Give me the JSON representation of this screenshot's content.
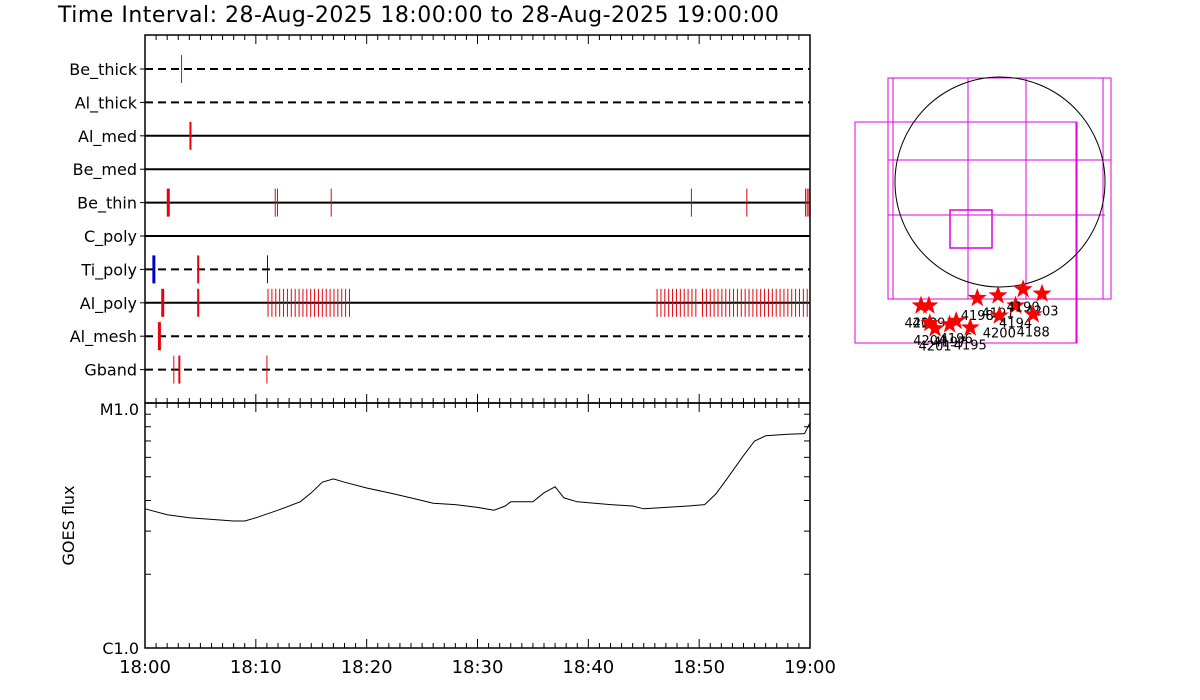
{
  "title": "Time Interval: 28-Aug-2025 18:00:00 to 28-Aug-2025 19:00:00",
  "colors": {
    "event": "#e8000b",
    "event_blue": "#0000cc",
    "region": "#e000e0",
    "star": "#ff0000",
    "line": "#000000"
  },
  "chart_data": [
    {
      "type": "event-timeline",
      "x_range": [
        "18:00",
        "19:00"
      ],
      "rows": [
        {
          "name": "Be_thick",
          "style": "dashed",
          "events": [
            {
              "t": 3.3,
              "color": "red",
              "w": 1
            }
          ]
        },
        {
          "name": "Al_thick",
          "style": "dashed",
          "events": []
        },
        {
          "name": "Al_med",
          "style": "solid",
          "events": [
            {
              "t": 4.1,
              "color": "red",
              "w": 2
            }
          ]
        },
        {
          "name": "Be_med",
          "style": "solid",
          "events": []
        },
        {
          "name": "Be_thin",
          "style": "solid",
          "events": [
            {
              "t": 2.1,
              "color": "red",
              "w": 3
            },
            {
              "t": 11.75,
              "color": "red",
              "w": 1
            },
            {
              "t": 11.95,
              "color": "red",
              "w": 1
            },
            {
              "t": 16.8,
              "color": "red",
              "w": 1
            },
            {
              "t": 49.3,
              "color": "red",
              "w": 1
            },
            {
              "t": 54.3,
              "color": "red",
              "w": 1
            },
            {
              "t": 59.6,
              "color": "red",
              "w": 1
            },
            {
              "t": 59.75,
              "color": "red",
              "w": 1
            },
            {
              "t": 59.9,
              "color": "red",
              "w": 1
            }
          ]
        },
        {
          "name": "C_poly",
          "style": "solid",
          "events": []
        },
        {
          "name": "Ti_poly",
          "style": "dashed",
          "events": [
            {
              "t": 0.8,
              "color": "blue",
              "w": 3
            },
            {
              "t": 4.8,
              "color": "red",
              "w": 2
            },
            {
              "t": 11.05,
              "color": "blue",
              "w": 1
            }
          ]
        },
        {
          "name": "Al_poly",
          "style": "solid",
          "events": [
            {
              "t": 1.6,
              "color": "red",
              "w": 3
            },
            {
              "t": 4.8,
              "color": "red",
              "w": 2
            },
            {
              "t": 11.1,
              "color": "red",
              "w": 1
            },
            {
              "t": 11.45,
              "color": "red",
              "w": 1
            },
            {
              "t": 11.8,
              "color": "red",
              "w": 1
            },
            {
              "t": 12.15,
              "color": "red",
              "w": 1
            },
            {
              "t": 12.5,
              "color": "red",
              "w": 1
            },
            {
              "t": 12.85,
              "color": "red",
              "w": 1
            },
            {
              "t": 13.2,
              "color": "red",
              "w": 1
            },
            {
              "t": 13.55,
              "color": "red",
              "w": 1
            },
            {
              "t": 13.9,
              "color": "red",
              "w": 1
            },
            {
              "t": 14.25,
              "color": "red",
              "w": 1
            },
            {
              "t": 14.6,
              "color": "red",
              "w": 1
            },
            {
              "t": 14.95,
              "color": "red",
              "w": 1
            },
            {
              "t": 15.3,
              "color": "red",
              "w": 1
            },
            {
              "t": 15.65,
              "color": "red",
              "w": 1
            },
            {
              "t": 16.0,
              "color": "red",
              "w": 1
            },
            {
              "t": 16.35,
              "color": "red",
              "w": 1
            },
            {
              "t": 16.7,
              "color": "red",
              "w": 1
            },
            {
              "t": 17.05,
              "color": "red",
              "w": 1
            },
            {
              "t": 17.4,
              "color": "red",
              "w": 1
            },
            {
              "t": 17.75,
              "color": "red",
              "w": 1
            },
            {
              "t": 18.1,
              "color": "red",
              "w": 1
            },
            {
              "t": 18.45,
              "color": "red",
              "w": 1
            },
            {
              "t": 46.2,
              "color": "red",
              "w": 1
            },
            {
              "t": 46.55,
              "color": "red",
              "w": 1
            },
            {
              "t": 46.9,
              "color": "red",
              "w": 1
            },
            {
              "t": 47.25,
              "color": "red",
              "w": 1
            },
            {
              "t": 47.6,
              "color": "red",
              "w": 1
            },
            {
              "t": 47.95,
              "color": "red",
              "w": 1
            },
            {
              "t": 48.3,
              "color": "red",
              "w": 1
            },
            {
              "t": 48.65,
              "color": "red",
              "w": 1
            },
            {
              "t": 49.0,
              "color": "red",
              "w": 1
            },
            {
              "t": 49.35,
              "color": "red",
              "w": 1
            },
            {
              "t": 49.7,
              "color": "red",
              "w": 1
            },
            {
              "t": 50.3,
              "color": "red",
              "w": 1
            },
            {
              "t": 50.65,
              "color": "red",
              "w": 1
            },
            {
              "t": 51.0,
              "color": "red",
              "w": 1
            },
            {
              "t": 51.35,
              "color": "red",
              "w": 1
            },
            {
              "t": 51.7,
              "color": "red",
              "w": 1
            },
            {
              "t": 52.05,
              "color": "red",
              "w": 1
            },
            {
              "t": 52.4,
              "color": "red",
              "w": 1
            },
            {
              "t": 52.75,
              "color": "red",
              "w": 1
            },
            {
              "t": 53.1,
              "color": "red",
              "w": 1
            },
            {
              "t": 53.45,
              "color": "red",
              "w": 1
            },
            {
              "t": 53.8,
              "color": "red",
              "w": 1
            },
            {
              "t": 54.15,
              "color": "red",
              "w": 1
            },
            {
              "t": 54.5,
              "color": "red",
              "w": 1
            },
            {
              "t": 54.85,
              "color": "red",
              "w": 1
            },
            {
              "t": 55.2,
              "color": "red",
              "w": 1
            },
            {
              "t": 55.55,
              "color": "red",
              "w": 1
            },
            {
              "t": 55.9,
              "color": "red",
              "w": 1
            },
            {
              "t": 56.25,
              "color": "red",
              "w": 1
            },
            {
              "t": 56.6,
              "color": "red",
              "w": 1
            },
            {
              "t": 56.95,
              "color": "red",
              "w": 1
            },
            {
              "t": 57.3,
              "color": "red",
              "w": 1
            },
            {
              "t": 57.65,
              "color": "red",
              "w": 1
            },
            {
              "t": 58.0,
              "color": "red",
              "w": 1
            },
            {
              "t": 58.35,
              "color": "red",
              "w": 1
            },
            {
              "t": 58.7,
              "color": "red",
              "w": 1
            },
            {
              "t": 59.05,
              "color": "red",
              "w": 1
            },
            {
              "t": 59.4,
              "color": "red",
              "w": 1
            },
            {
              "t": 59.75,
              "color": "red",
              "w": 1
            }
          ]
        },
        {
          "name": "Al_mesh",
          "style": "dashed",
          "events": [
            {
              "t": 1.3,
              "color": "red",
              "w": 3
            }
          ]
        },
        {
          "name": "Gband",
          "style": "dashed",
          "events": [
            {
              "t": 2.6,
              "color": "red",
              "w": 1
            },
            {
              "t": 3.1,
              "color": "red",
              "w": 2
            },
            {
              "t": 11.0,
              "color": "red",
              "w": 1
            }
          ]
        }
      ]
    },
    {
      "type": "line",
      "ylabel": "GOES flux",
      "y_scale": "log",
      "y_ticks": [
        "M1.0",
        "C1.0"
      ],
      "x_ticks": [
        "18:00",
        "18:10",
        "18:20",
        "18:30",
        "18:40",
        "18:50",
        "19:00"
      ],
      "points": [
        [
          0,
          3.7
        ],
        [
          2,
          3.5
        ],
        [
          4,
          3.4
        ],
        [
          6,
          3.35
        ],
        [
          8,
          3.3
        ],
        [
          9,
          3.3
        ],
        [
          10,
          3.4
        ],
        [
          12,
          3.65
        ],
        [
          14,
          3.95
        ],
        [
          15,
          4.3
        ],
        [
          16,
          4.75
        ],
        [
          17,
          4.9
        ],
        [
          18,
          4.75
        ],
        [
          20,
          4.5
        ],
        [
          22,
          4.3
        ],
        [
          24,
          4.1
        ],
        [
          26,
          3.9
        ],
        [
          28,
          3.85
        ],
        [
          30,
          3.75
        ],
        [
          31.5,
          3.65
        ],
        [
          32.5,
          3.8
        ],
        [
          33,
          3.95
        ],
        [
          35,
          3.95
        ],
        [
          36,
          4.3
        ],
        [
          37,
          4.55
        ],
        [
          37.8,
          4.1
        ],
        [
          39,
          3.95
        ],
        [
          42,
          3.85
        ],
        [
          44,
          3.8
        ],
        [
          45,
          3.7
        ],
        [
          47,
          3.75
        ],
        [
          49,
          3.8
        ],
        [
          50.5,
          3.85
        ],
        [
          51.5,
          4.25
        ],
        [
          52.5,
          4.9
        ],
        [
          54,
          6.1
        ],
        [
          55,
          7.0
        ],
        [
          56,
          7.35
        ],
        [
          57,
          7.4
        ],
        [
          58,
          7.45
        ],
        [
          59.5,
          7.5
        ],
        [
          60,
          8.3
        ]
      ]
    },
    {
      "type": "map",
      "regions": [
        {
          "label": "4200",
          "x": 1.5,
          "y": 0.85
        },
        {
          "label": "4199",
          "x": 1.68,
          "y": 0.85
        },
        {
          "label": "4204",
          "x": 1.7,
          "y": 0.45
        },
        {
          "label": "4201",
          "x": 1.82,
          "y": 0.33
        },
        {
          "label": "4197",
          "x": 2.15,
          "y": 0.42
        },
        {
          "label": "4196",
          "x": 2.3,
          "y": 0.5
        },
        {
          "label": "4195",
          "x": 2.62,
          "y": 0.35
        },
        {
          "label": "4198",
          "x": 2.78,
          "y": 1.02
        },
        {
          "label": "4191",
          "x": 3.25,
          "y": 1.08
        },
        {
          "label": "4200",
          "x": 3.28,
          "y": 0.62
        },
        {
          "label": "4194",
          "x": 3.65,
          "y": 0.85
        },
        {
          "label": "4190",
          "x": 3.82,
          "y": 1.22
        },
        {
          "label": "4203",
          "x": 4.25,
          "y": 1.12
        },
        {
          "label": "4188",
          "x": 4.05,
          "y": 0.65
        }
      ]
    }
  ]
}
